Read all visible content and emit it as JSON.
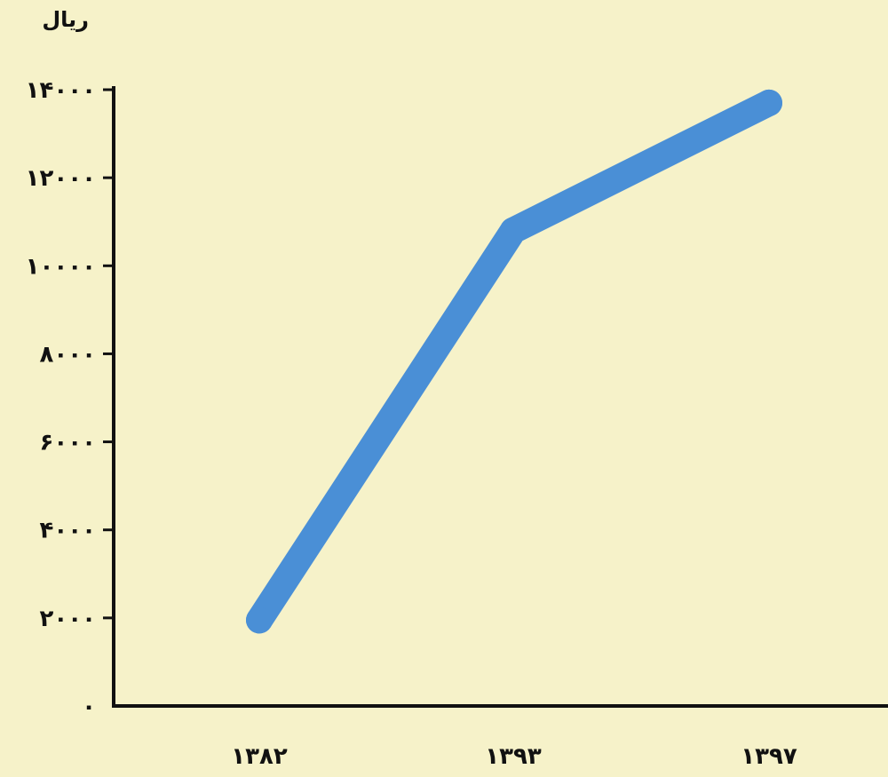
{
  "chart_data": {
    "type": "line",
    "title": "",
    "xlabel": "",
    "ylabel": "ریال",
    "categories": [
      "۱۳۸۲",
      "۱۳۹۳",
      "۱۳۹۷"
    ],
    "series": [
      {
        "values": [
          1950,
          10800,
          13700
        ],
        "color": "#4a8fd6"
      }
    ],
    "ylim": [
      0,
      14000
    ],
    "y_ticks": [
      0,
      2000,
      4000,
      6000,
      8000,
      10000,
      12000,
      14000
    ],
    "y_tick_labels": [
      "۰",
      "۲۰۰۰",
      "۴۰۰۰",
      "۶۰۰۰",
      "۸۰۰۰",
      "۱۰۰۰۰",
      "۱۲۰۰۰",
      "۱۴۰۰۰"
    ],
    "grid": false,
    "legend": "none",
    "colors": {
      "background": "#f6f2c9",
      "axis": "#111111",
      "line": "#4a8fd6"
    }
  }
}
